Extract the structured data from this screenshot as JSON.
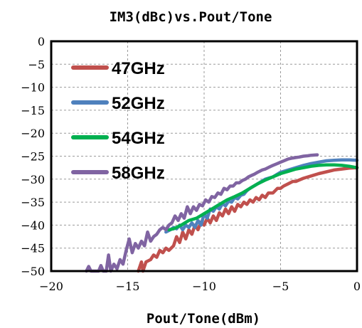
{
  "chart_data": {
    "type": "line",
    "title": "IM3(dBc)vs.Pout/Tone",
    "xlabel": "Pout/Tone(dBm)",
    "ylabel": "",
    "xlim": [
      -20,
      0
    ],
    "ylim": [
      -50,
      0
    ],
    "xticks": [
      -20,
      -15,
      -10,
      -5,
      0
    ],
    "yticks": [
      0,
      -5,
      -10,
      -15,
      -20,
      -25,
      -30,
      -35,
      -40,
      -45,
      -50
    ],
    "xtick_labels": [
      "−20",
      "−15",
      "−10",
      "−5",
      "0"
    ],
    "ytick_labels": [
      "0",
      "−5",
      "−10",
      "−15",
      "−20",
      "−25",
      "−30",
      "−35",
      "−40",
      "−45",
      "−50"
    ],
    "grid": true,
    "legend_position": "top-left",
    "series": [
      {
        "name": "47GHz",
        "color": "#C0504D",
        "x": [
          -14.3,
          -14.1,
          -14.0,
          -13.8,
          -13.5,
          -13.3,
          -13.1,
          -12.9,
          -12.7,
          -12.5,
          -12.3,
          -12.0,
          -11.8,
          -11.6,
          -11.4,
          -11.2,
          -11.0,
          -10.8,
          -10.6,
          -10.4,
          -10.2,
          -10.0,
          -9.8,
          -9.6,
          -9.4,
          -9.2,
          -9.0,
          -8.8,
          -8.6,
          -8.4,
          -8.2,
          -8.0,
          -7.8,
          -7.6,
          -7.4,
          -7.2,
          -7.0,
          -6.8,
          -6.6,
          -6.4,
          -6.2,
          -6.0,
          -5.8,
          -5.5,
          -5.2,
          -5.0,
          -4.8,
          -4.5,
          -4.2,
          -4.0,
          -3.5,
          -3.0,
          -2.5,
          -2.0,
          -1.5,
          -1.0,
          -0.5,
          0.0
        ],
        "y": [
          -50.0,
          -48.0,
          -50.0,
          -48.0,
          -47.5,
          -46.5,
          -47.0,
          -45.5,
          -46.0,
          -45.0,
          -45.5,
          -44.5,
          -42.5,
          -43.8,
          -41.5,
          -43.0,
          -41.0,
          -42.0,
          -40.0,
          -41.0,
          -39.3,
          -40.0,
          -38.5,
          -39.5,
          -38.0,
          -39.0,
          -37.3,
          -38.0,
          -36.5,
          -37.5,
          -36.0,
          -37.0,
          -35.5,
          -36.0,
          -35.0,
          -35.5,
          -34.5,
          -35.0,
          -34.0,
          -34.5,
          -33.5,
          -34.0,
          -33.0,
          -33.0,
          -32.0,
          -32.0,
          -31.5,
          -31.0,
          -30.5,
          -30.5,
          -29.8,
          -29.3,
          -28.8,
          -28.4,
          -28.0,
          -27.8,
          -27.6,
          -27.5
        ]
      },
      {
        "name": "52GHz",
        "color": "#4F81BD",
        "x": [
          -12.5,
          -12.2,
          -12.0,
          -11.8,
          -11.6,
          -11.4,
          -11.2,
          -11.0,
          -10.8,
          -10.6,
          -10.4,
          -10.2,
          -10.0,
          -9.8,
          -9.6,
          -9.4,
          -9.2,
          -9.0,
          -8.8,
          -8.6,
          -8.4,
          -8.2,
          -8.0,
          -7.8,
          -7.6,
          -7.4,
          -7.2,
          -7.0,
          -6.5,
          -6.0,
          -5.5,
          -5.0,
          -4.5,
          -4.0,
          -3.5,
          -3.0,
          -2.5,
          -2.0,
          -1.5,
          -1.0,
          -0.5,
          0.0
        ],
        "y": [
          -41.5,
          -41.0,
          -40.5,
          -40.8,
          -40.0,
          -41.0,
          -40.0,
          -40.5,
          -39.5,
          -40.5,
          -39.0,
          -40.0,
          -37.5,
          -38.5,
          -36.5,
          -37.0,
          -36.0,
          -36.5,
          -35.3,
          -35.8,
          -34.8,
          -35.0,
          -34.0,
          -34.3,
          -33.5,
          -33.3,
          -32.5,
          -32.0,
          -31.0,
          -30.0,
          -29.5,
          -28.5,
          -28.0,
          -27.5,
          -27.0,
          -26.6,
          -26.3,
          -26.0,
          -25.9,
          -25.8,
          -25.8,
          -25.9
        ]
      },
      {
        "name": "54GHz",
        "color": "#00B050",
        "x": [
          -12.3,
          -12.0,
          -11.5,
          -11.0,
          -10.5,
          -10.0,
          -9.5,
          -9.0,
          -8.5,
          -8.0,
          -7.5,
          -7.0,
          -6.5,
          -6.0,
          -5.5,
          -5.0,
          -4.5,
          -4.0,
          -3.5,
          -3.0,
          -2.5,
          -2.0,
          -1.5,
          -1.0,
          -0.5,
          0.0
        ],
        "y": [
          -41.0,
          -40.8,
          -40.0,
          -39.0,
          -38.5,
          -37.5,
          -36.5,
          -35.5,
          -34.5,
          -33.8,
          -33.0,
          -32.0,
          -31.0,
          -30.2,
          -29.5,
          -28.8,
          -28.3,
          -27.8,
          -27.5,
          -27.2,
          -27.0,
          -26.9,
          -26.9,
          -27.0,
          -27.2,
          -27.5
        ]
      },
      {
        "name": "58GHz",
        "color": "#8064A2",
        "x": [
          -17.7,
          -17.55,
          -17.4,
          -16.9,
          -16.75,
          -16.6,
          -16.4,
          -16.25,
          -16.1,
          -15.9,
          -15.7,
          -15.5,
          -15.3,
          -15.1,
          -14.9,
          -14.7,
          -14.5,
          -14.3,
          -14.1,
          -13.9,
          -13.7,
          -13.5,
          -13.3,
          -13.1,
          -12.9,
          -12.7,
          -12.5,
          -12.3,
          -12.1,
          -11.9,
          -11.7,
          -11.5,
          -11.3,
          -11.1,
          -10.9,
          -10.7,
          -10.5,
          -10.3,
          -10.1,
          -9.9,
          -9.7,
          -9.5,
          -9.3,
          -9.1,
          -8.9,
          -8.7,
          -8.5,
          -8.3,
          -8.1,
          -7.9,
          -7.7,
          -7.5,
          -7.3,
          -7.1,
          -6.9,
          -6.7,
          -6.5,
          -6.2,
          -6.0,
          -5.7,
          -5.5,
          -5.2,
          -5.0,
          -4.7,
          -4.5,
          -4.2,
          -4.0,
          -3.8,
          -3.5,
          -3.2,
          -3.0,
          -2.6
        ],
        "y": [
          -50.0,
          -49.0,
          -50.0,
          -50.0,
          -48.8,
          -50.0,
          -50.0,
          -46.5,
          -50.0,
          -48.5,
          -49.5,
          -47.5,
          -48.5,
          -45.5,
          -43.0,
          -46.0,
          -44.0,
          -45.0,
          -43.5,
          -44.5,
          -41.5,
          -43.5,
          -42.5,
          -42.0,
          -41.0,
          -40.5,
          -41.0,
          -40.0,
          -39.5,
          -38.0,
          -39.0,
          -37.5,
          -38.5,
          -36.0,
          -37.5,
          -36.0,
          -36.8,
          -35.5,
          -35.8,
          -34.5,
          -35.0,
          -33.8,
          -34.0,
          -33.0,
          -33.3,
          -32.0,
          -32.3,
          -31.5,
          -31.5,
          -30.8,
          -30.8,
          -30.3,
          -30.0,
          -29.5,
          -29.2,
          -28.9,
          -28.5,
          -28.0,
          -27.8,
          -27.3,
          -27.0,
          -26.6,
          -26.3,
          -25.9,
          -25.6,
          -25.4,
          -25.3,
          -25.2,
          -25.0,
          -24.9,
          -24.8,
          -24.7
        ]
      }
    ]
  }
}
